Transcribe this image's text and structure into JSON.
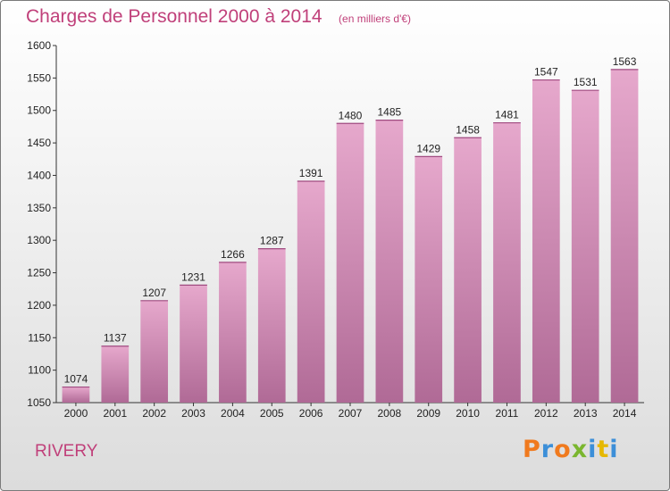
{
  "chart_data": {
    "type": "bar",
    "title": "Charges de Personnel 2000 à 2014",
    "subtitle": "(en milliers d'€)",
    "categories": [
      "2000",
      "2001",
      "2002",
      "2003",
      "2004",
      "2005",
      "2006",
      "2007",
      "2008",
      "2009",
      "2010",
      "2011",
      "2012",
      "2013",
      "2014"
    ],
    "values": [
      1074,
      1137,
      1207,
      1231,
      1266,
      1287,
      1391,
      1480,
      1485,
      1429,
      1458,
      1481,
      1547,
      1531,
      1563
    ],
    "ylim": [
      1050,
      1600
    ],
    "yticks": [
      1050,
      1100,
      1150,
      1200,
      1250,
      1300,
      1350,
      1400,
      1450,
      1500,
      1550,
      1600
    ],
    "grid": false,
    "xlabel": "",
    "ylabel": "",
    "bar_color_top": "#e6a8cc",
    "bar_color_bottom": "#b06a96"
  },
  "place": "RIVERY",
  "logo": {
    "letters": [
      "P",
      "r",
      "o",
      "x",
      "i",
      "t",
      "i"
    ]
  }
}
